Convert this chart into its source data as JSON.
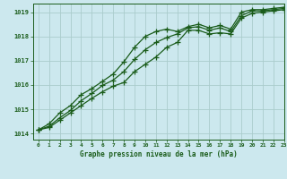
{
  "title": "Graphe pression niveau de la mer (hPa)",
  "bg_color": "#cce8ee",
  "grid_color": "#aacccc",
  "line_color": "#1a5c1a",
  "xlim": [
    -0.5,
    23
  ],
  "ylim": [
    1013.75,
    1019.35
  ],
  "yticks": [
    1014,
    1015,
    1016,
    1017,
    1018,
    1019
  ],
  "xticks": [
    0,
    1,
    2,
    3,
    4,
    5,
    6,
    7,
    8,
    9,
    10,
    11,
    12,
    13,
    14,
    15,
    16,
    17,
    18,
    19,
    20,
    21,
    22,
    23
  ],
  "line1_x": [
    0,
    1,
    2,
    3,
    4,
    5,
    6,
    7,
    8,
    9,
    10,
    11,
    12,
    13,
    14,
    15,
    16,
    17,
    18,
    19,
    20,
    21,
    22,
    23
  ],
  "line1_y": [
    1014.15,
    1014.25,
    1014.55,
    1014.85,
    1015.15,
    1015.45,
    1015.72,
    1015.95,
    1016.1,
    1016.55,
    1016.85,
    1017.15,
    1017.55,
    1017.75,
    1018.25,
    1018.25,
    1018.1,
    1018.15,
    1018.1,
    1018.75,
    1018.95,
    1019.0,
    1019.05,
    1019.1
  ],
  "line2_x": [
    0,
    1,
    2,
    3,
    4,
    5,
    6,
    7,
    8,
    9,
    10,
    11,
    12,
    13,
    14,
    15,
    16,
    17,
    18,
    19,
    20,
    21,
    22,
    23
  ],
  "line2_y": [
    1014.15,
    1014.3,
    1014.65,
    1014.95,
    1015.35,
    1015.65,
    1015.98,
    1016.2,
    1016.55,
    1017.05,
    1017.45,
    1017.75,
    1017.95,
    1018.1,
    1018.35,
    1018.4,
    1018.25,
    1018.35,
    1018.2,
    1018.85,
    1019.05,
    1019.05,
    1019.1,
    1019.15
  ],
  "line3_x": [
    0,
    1,
    2,
    3,
    4,
    5,
    6,
    7,
    8,
    9,
    10,
    11,
    12,
    13,
    14,
    15,
    16,
    17,
    18,
    19,
    20,
    21,
    22,
    23
  ],
  "line3_y": [
    1014.15,
    1014.4,
    1014.85,
    1015.15,
    1015.6,
    1015.85,
    1016.15,
    1016.45,
    1016.95,
    1017.55,
    1018.0,
    1018.2,
    1018.3,
    1018.2,
    1018.4,
    1018.5,
    1018.35,
    1018.45,
    1018.3,
    1019.0,
    1019.1,
    1019.1,
    1019.15,
    1019.2
  ]
}
